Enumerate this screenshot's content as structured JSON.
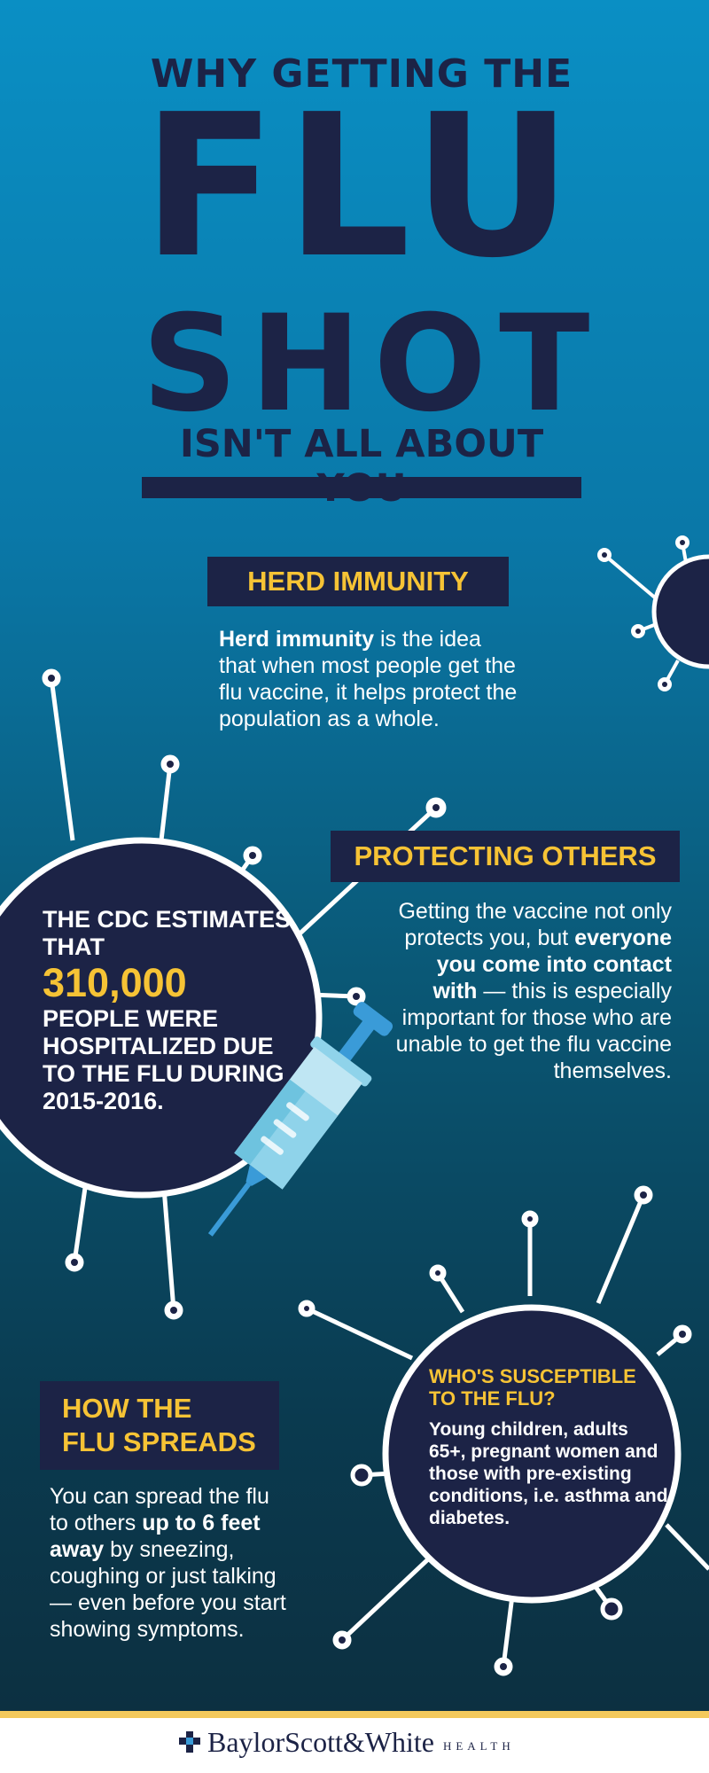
{
  "title": {
    "line1": "WHY GETTING THE",
    "line2": "FLU",
    "line3": "SHOT",
    "line4": "ISN'T ALL ABOUT YOU"
  },
  "herd_immunity": {
    "label": "HERD IMMUNITY",
    "text_bold": "Herd immunity",
    "text_rest": " is the idea that when most people get the flu vaccine, it helps protect the population as a whole."
  },
  "protecting_others": {
    "label": "PROTECTING OTHERS",
    "text_part1": "Getting the vaccine not only protects you, but ",
    "text_bold": "everyone you come into contact with",
    "text_part2": " — this is especially important for those who are unable to get the flu vaccine themselves."
  },
  "cdc_stat": {
    "intro": "THE CDC ESTIMATES THAT",
    "number": "310,000",
    "outro": "PEOPLE WERE HOSPITALIZED DUE TO THE FLU DURING 2015-2016."
  },
  "how_flu_spreads": {
    "label_line1": "HOW THE",
    "label_line2": "FLU SPREADS",
    "text_part1": "You can spread the flu to others ",
    "text_bold": "up to 6 feet away",
    "text_part2": " by sneezing, coughing or just talking — even before you start showing symptoms."
  },
  "susceptible": {
    "title": "WHO'S SUSCEPTIBLE TO THE FLU?",
    "text": "Young children, adults 65+, pregnant women and those with pre-existing conditions, i.e. asthma and diabetes."
  },
  "footer": {
    "brand_name": "BaylorScott&White",
    "brand_sub": "HEALTH"
  },
  "colors": {
    "navy": "#1c2346",
    "accent_yellow": "#f6c335",
    "background_top": "#0a8fc4",
    "background_bottom": "#0d2e3e",
    "syringe_light": "#8fd3ea",
    "syringe_blue": "#3a9bd8"
  },
  "icons": [
    "virus-icon",
    "syringe-icon",
    "baylor-cross-icon"
  ]
}
